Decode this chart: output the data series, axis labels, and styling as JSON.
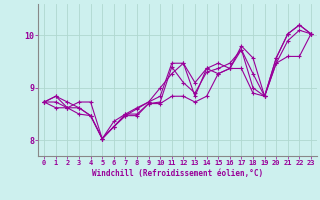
{
  "xlabel": "Windchill (Refroidissement éolien,°C)",
  "xlim": [
    -0.5,
    23.5
  ],
  "ylim": [
    7.7,
    10.6
  ],
  "yticks": [
    8,
    9,
    10
  ],
  "xticks": [
    0,
    1,
    2,
    3,
    4,
    5,
    6,
    7,
    8,
    9,
    10,
    11,
    12,
    13,
    14,
    15,
    16,
    17,
    18,
    19,
    20,
    21,
    22,
    23
  ],
  "bg_color": "#cdf0ee",
  "line_color": "#990099",
  "grid_color": "#b0d8d0",
  "lines": [
    [
      8.73,
      8.84,
      8.73,
      8.62,
      8.47,
      8.03,
      8.26,
      8.47,
      8.6,
      8.73,
      8.84,
      9.47,
      9.47,
      8.84,
      9.37,
      9.27,
      9.37,
      9.8,
      9.57,
      8.84,
      9.57,
      10.03,
      10.2,
      10.03
    ],
    [
      8.73,
      8.84,
      8.62,
      8.5,
      8.47,
      8.03,
      8.26,
      8.47,
      8.47,
      8.7,
      8.73,
      9.4,
      9.1,
      8.9,
      9.3,
      9.37,
      9.47,
      9.73,
      9.27,
      8.84,
      9.47,
      9.9,
      10.1,
      10.03
    ],
    [
      8.73,
      8.62,
      8.62,
      8.62,
      8.47,
      8.03,
      8.36,
      8.5,
      8.5,
      8.7,
      8.7,
      8.84,
      8.84,
      8.73,
      8.84,
      9.27,
      9.37,
      9.37,
      8.9,
      8.84,
      9.47,
      9.6,
      9.6,
      10.03
    ],
    [
      8.73,
      8.73,
      8.62,
      8.73,
      8.73,
      8.03,
      8.26,
      8.5,
      8.62,
      8.73,
      9.0,
      9.27,
      9.47,
      9.1,
      9.37,
      9.47,
      9.37,
      9.73,
      9.0,
      8.84,
      9.57,
      10.03,
      10.2,
      10.03
    ]
  ]
}
